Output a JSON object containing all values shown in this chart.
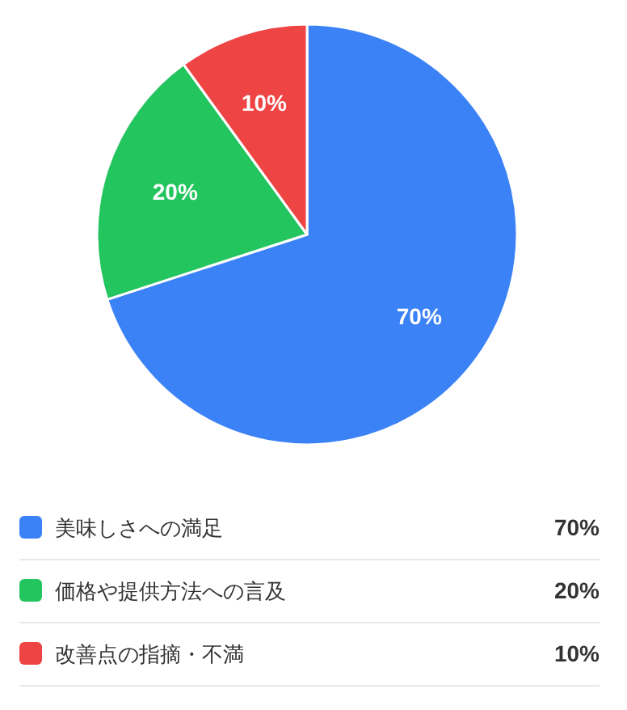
{
  "chart_data": {
    "type": "pie",
    "categories": [
      "美味しさへの満足",
      "価格や提供方法への言及",
      "改善点の指摘・不満"
    ],
    "values": [
      70,
      20,
      10
    ],
    "value_labels": [
      "70%",
      "20%",
      "10%"
    ],
    "colors": [
      "#3b82f6",
      "#22c55e",
      "#ef4444"
    ],
    "legend": "bottom"
  }
}
